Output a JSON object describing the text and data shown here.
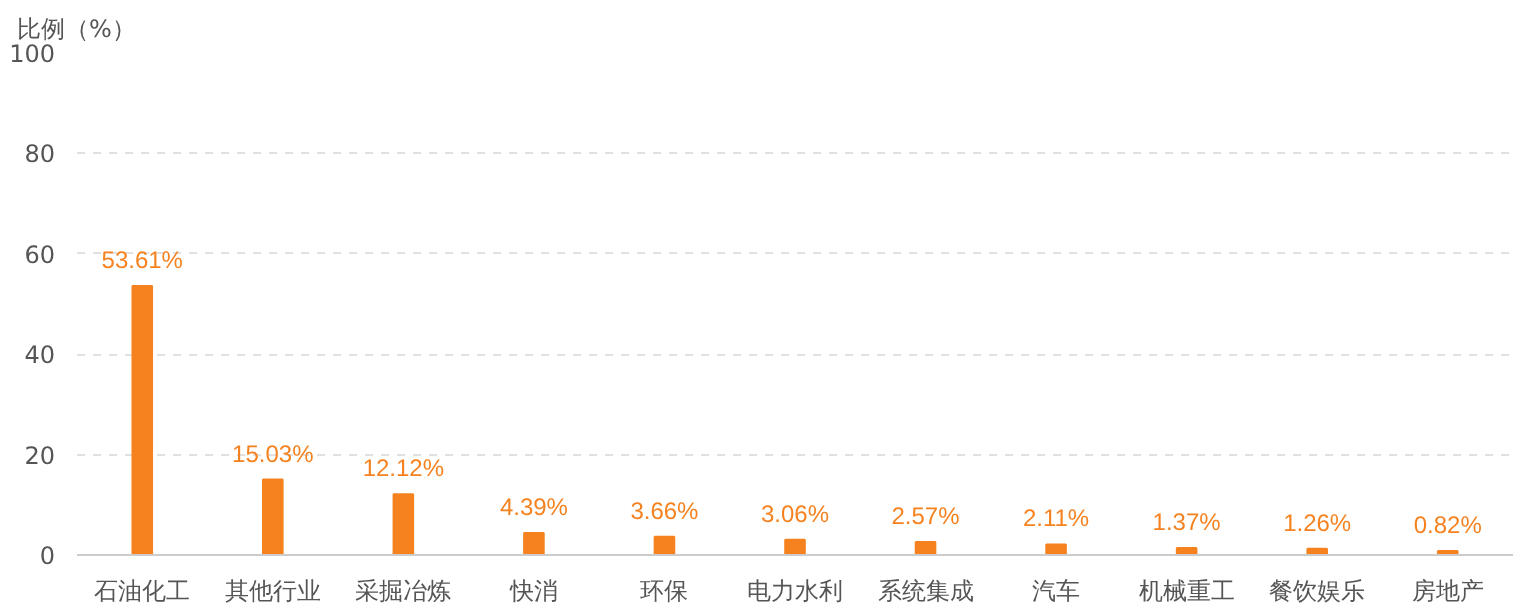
{
  "chart_data": {
    "type": "bar",
    "ylabel": "比例（%）",
    "categories": [
      "石油化工",
      "其他行业",
      "采掘冶炼",
      "快消",
      "环保",
      "电力水利",
      "系统集成",
      "汽车",
      "机械重工",
      "餐饮娱乐",
      "房地产"
    ],
    "values": [
      53.61,
      15.03,
      12.12,
      4.39,
      3.66,
      3.06,
      2.57,
      2.11,
      1.37,
      1.26,
      0.82
    ],
    "value_labels": [
      "53.61%",
      "15.03%",
      "12.12%",
      "4.39%",
      "3.66%",
      "3.06%",
      "2.57%",
      "2.11%",
      "1.37%",
      "1.26%",
      "0.82%"
    ],
    "color": "#f5821f",
    "ylim": [
      0,
      100
    ],
    "yticks": [
      0,
      20,
      40,
      60,
      80,
      100
    ],
    "grid": "y"
  }
}
